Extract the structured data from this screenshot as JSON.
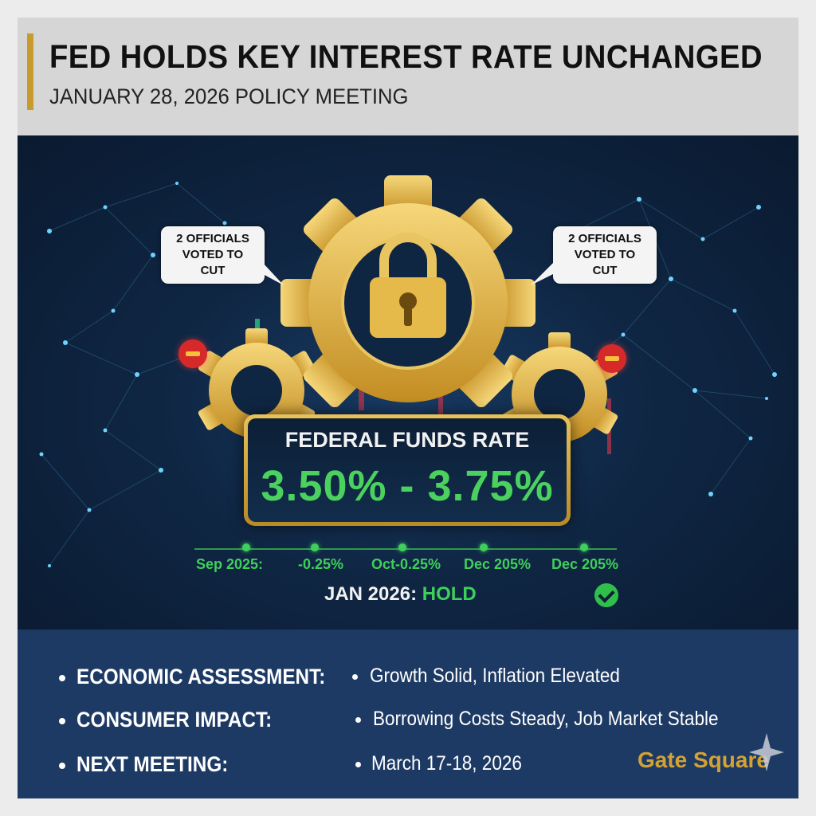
{
  "header": {
    "title": "FED HOLDS KEY INTEREST RATE UNCHANGED",
    "subtitle": "JANUARY 28, 2026 POLICY MEETING"
  },
  "hero": {
    "bubble_left": {
      "line1": "2 OFFICIALS",
      "line2": "VOTED TO CUT"
    },
    "bubble_right": {
      "line1": "2 OFFICIALS",
      "line2": "VOTED TO CUT"
    },
    "rate_label": "FEDERAL FUNDS RATE",
    "rate_value": "3.50% - 3.75%",
    "timeline": [
      "Sep 2025:",
      "-0.25%",
      "Oct-0.25%",
      "Dec 205%",
      "Dec 205%"
    ],
    "decision_label": "JAN 2026:",
    "decision_value": "HOLD"
  },
  "details": [
    {
      "label": "ECONOMIC ASSESSMENT:",
      "value": "Growth Solid, Inflation Elevated"
    },
    {
      "label": "CONSUMER IMPACT:",
      "value": "Borrowing Costs Steady, Job Market Stable"
    },
    {
      "label": "NEXT MEETING:",
      "value": "March 17-18, 2026"
    }
  ],
  "brand": "Gate Square",
  "icons": [
    "gear-icon",
    "lock-icon",
    "minus-icon",
    "check-icon",
    "sparkle-icon"
  ],
  "colors": {
    "accent_gold": "#c89b2e",
    "rate_green": "#4ad15e",
    "navy": "#1d3a64",
    "alert_red": "#d62a2a"
  }
}
